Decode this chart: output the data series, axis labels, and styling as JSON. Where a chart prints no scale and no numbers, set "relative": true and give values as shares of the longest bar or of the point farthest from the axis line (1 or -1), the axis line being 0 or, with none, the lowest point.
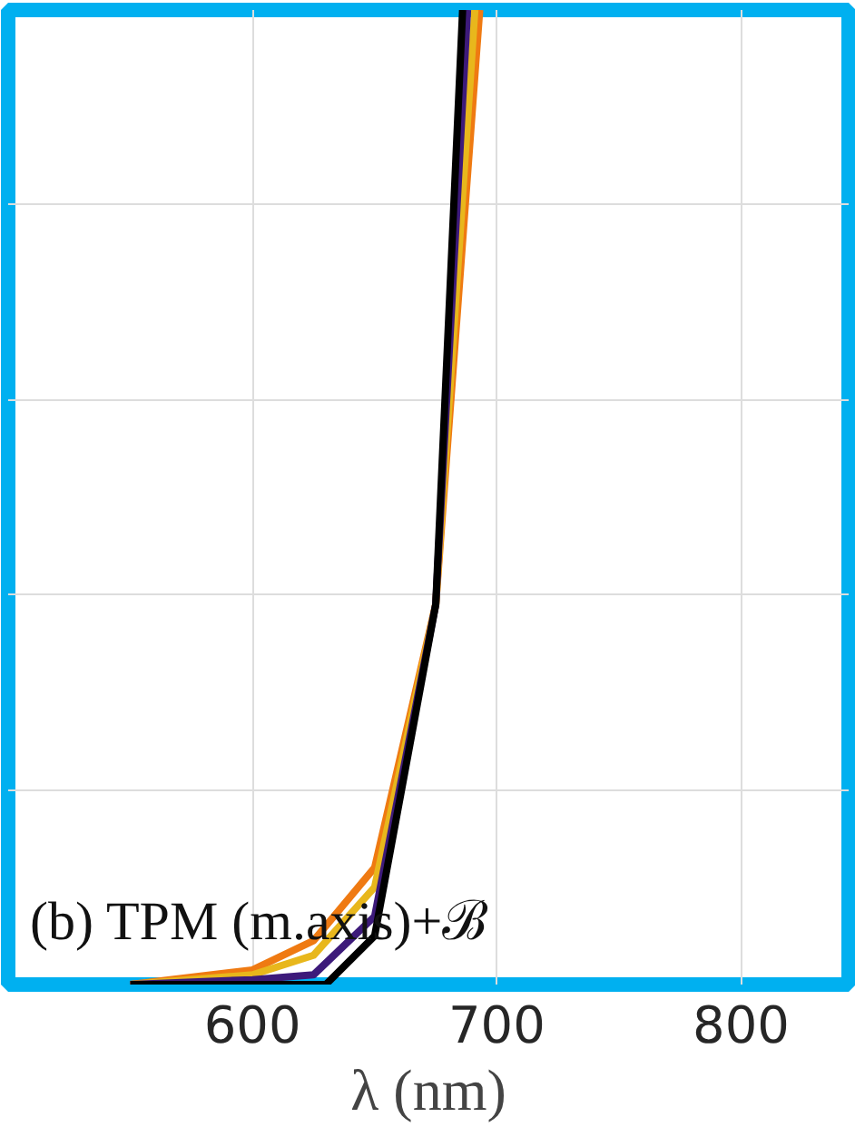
{
  "chart_data": {
    "type": "line",
    "relative": true,
    "xlabel": "λ (nm)",
    "xlim": [
      500,
      844
    ],
    "xticks": [
      600,
      700,
      800
    ],
    "grid": true,
    "line_style": "solid",
    "annotations": [
      "(b) TPM (m.axis)+ℬ"
    ],
    "series": [
      {
        "color": "#ef7a12",
        "x": [
          550,
          600,
          625,
          650,
          675,
          693
        ],
        "values": [
          0,
          0.015,
          0.045,
          0.12,
          0.39,
          1.0
        ]
      },
      {
        "color": "#e8b71c",
        "x": [
          550,
          600,
          625,
          650,
          675,
          691
        ],
        "values": [
          0,
          0.01,
          0.03,
          0.1,
          0.39,
          1.0
        ]
      },
      {
        "color": "#3d1a7a",
        "x": [
          550,
          600,
          625,
          650,
          675,
          688
        ],
        "values": [
          0,
          0.005,
          0.01,
          0.07,
          0.39,
          1.0
        ]
      },
      {
        "color": "#000000",
        "x": [
          550,
          600,
          630,
          650,
          675,
          686
        ],
        "values": [
          0,
          0,
          0,
          0.05,
          0.39,
          1.0
        ]
      }
    ]
  }
}
